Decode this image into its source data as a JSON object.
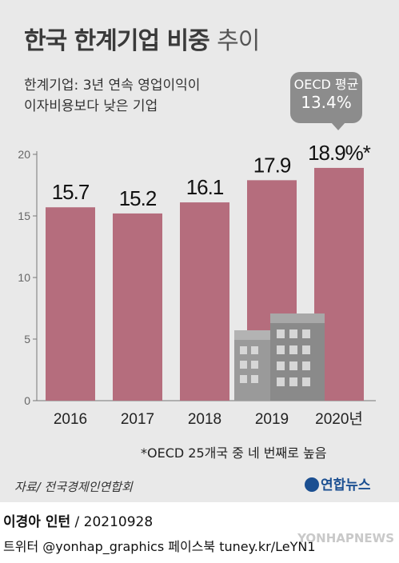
{
  "title": {
    "bold": "한국 한계기업 비중",
    "light": "추이"
  },
  "subtitle": {
    "line1": "한계기업: 3년 연속 영업이익이",
    "line2": "이자비용보다 낮은 기업"
  },
  "oecd_callout": {
    "line1": "OECD 평균",
    "line2": "13.4%"
  },
  "footnote": "*OECD 25개국 중 네 번째로 높음",
  "source": "자료/ 전국경제인연합회",
  "logo": "연합뉴스",
  "credit": {
    "name": "이경아 인턴",
    "date": " / 20210928"
  },
  "social": "트위터 @yonhap_graphics  페이스북 tuney.kr/LeYN1",
  "watermark": "YONHAPNEWS",
  "colors": {
    "bar": "#b56d7d",
    "axis": "#777777",
    "building": "#9a9a9a"
  },
  "chart_data": {
    "type": "bar",
    "categories": [
      "2016",
      "2017",
      "2018",
      "2019",
      "2020년"
    ],
    "values": [
      15.7,
      15.2,
      16.1,
      17.9,
      18.9
    ],
    "data_labels": [
      "15.7",
      "15.2",
      "16.1",
      "17.9",
      "18.9%*"
    ],
    "yticks": [
      "0",
      "5",
      "10",
      "15",
      "20"
    ],
    "ylim": [
      0,
      20
    ],
    "grid": false
  }
}
